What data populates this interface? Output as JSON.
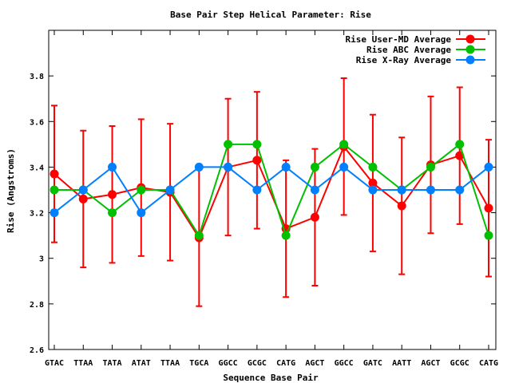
{
  "chart_data": {
    "type": "line",
    "title": "Base Pair Step Helical Parameter: Rise",
    "xlabel": "Sequence Base Pair",
    "ylabel": "Rise (Angstroms)",
    "categories": [
      "GTAC",
      "TTAA",
      "TATA",
      "ATAT",
      "TTAA",
      "TGCA",
      "GGCC",
      "GCGC",
      "CATG",
      "AGCT",
      "GGCC",
      "GATC",
      "AATT",
      "AGCT",
      "GCGC",
      "CATG"
    ],
    "ylim": [
      2.6,
      4.0
    ],
    "yticks": [
      2.6,
      2.8,
      3.0,
      3.2,
      3.4,
      3.6,
      3.8
    ],
    "ytick_labels": [
      "2.6",
      "2.8",
      "3",
      "3.2",
      "3.4",
      "3.6",
      "3.8"
    ],
    "legend_position": "top-right",
    "series": [
      {
        "name": "Rise User-MD Average",
        "color": "#ff0000",
        "values": [
          3.37,
          3.26,
          3.28,
          3.31,
          3.29,
          3.09,
          3.4,
          3.43,
          3.13,
          3.18,
          3.49,
          3.33,
          3.23,
          3.41,
          3.45,
          3.22
        ],
        "error_low": [
          3.07,
          2.96,
          2.98,
          3.01,
          2.99,
          2.79,
          3.1,
          3.13,
          2.83,
          2.88,
          3.19,
          3.03,
          2.93,
          3.11,
          3.15,
          2.92
        ],
        "error_high": [
          3.67,
          3.56,
          3.58,
          3.61,
          3.59,
          3.39,
          3.7,
          3.73,
          3.43,
          3.48,
          3.79,
          3.63,
          3.53,
          3.71,
          3.75,
          3.52
        ]
      },
      {
        "name": "Rise ABC Average",
        "color": "#00c000",
        "values": [
          3.3,
          3.3,
          3.2,
          3.3,
          3.3,
          3.1,
          3.5,
          3.5,
          3.1,
          3.4,
          3.5,
          3.4,
          3.3,
          3.4,
          3.5,
          3.1
        ]
      },
      {
        "name": "Rise X-Ray Average",
        "color": "#0080ff",
        "values": [
          3.2,
          3.3,
          3.4,
          3.2,
          3.3,
          3.4,
          3.4,
          3.3,
          3.4,
          3.3,
          3.4,
          3.3,
          3.3,
          3.3,
          3.3,
          3.4
        ]
      }
    ],
    "grid": false
  }
}
